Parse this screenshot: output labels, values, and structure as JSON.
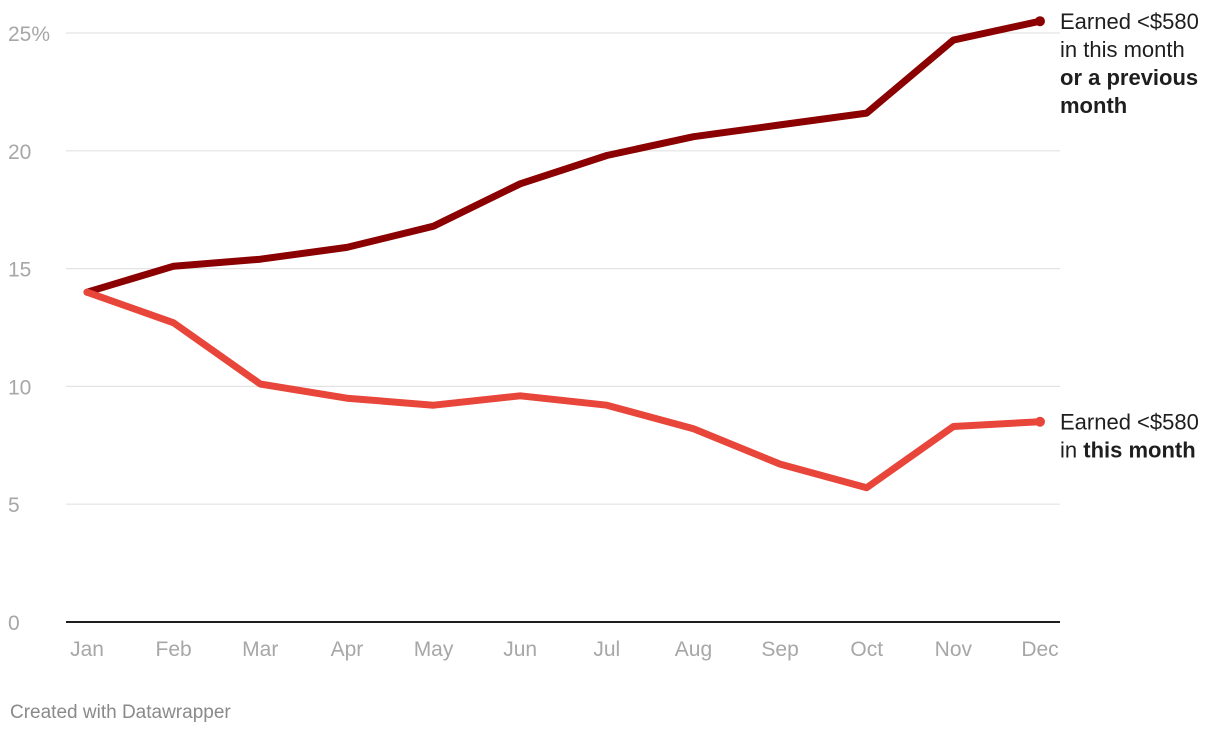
{
  "chart_data": {
    "type": "line",
    "x": [
      "Jan",
      "Feb",
      "Mar",
      "Apr",
      "May",
      "Jun",
      "Jul",
      "Aug",
      "Sep",
      "Oct",
      "Nov",
      "Dec"
    ],
    "ylim": [
      0,
      25
    ],
    "yticks": [
      0,
      5,
      10,
      15,
      20,
      25
    ],
    "ytick_labels": [
      "0",
      "5",
      "10",
      "15",
      "20",
      "25%"
    ],
    "grid": true,
    "series": [
      {
        "name": "Earned <$580 in this month or a previous month",
        "label_lines": [
          [
            {
              "text": "Earned <$580",
              "bold": false
            }
          ],
          [
            {
              "text": "in this month",
              "bold": false
            }
          ],
          [
            {
              "text": "or a previous",
              "bold": true
            }
          ],
          [
            {
              "text": "month",
              "bold": true
            }
          ]
        ],
        "color": "#8b0000",
        "values": [
          14.0,
          15.1,
          15.4,
          15.9,
          16.8,
          18.6,
          19.8,
          20.6,
          21.1,
          21.6,
          24.7,
          25.5
        ]
      },
      {
        "name": "Earned <$580 in this month",
        "label_lines": [
          [
            {
              "text": "Earned <$580",
              "bold": false
            }
          ],
          [
            {
              "text": "in ",
              "bold": false
            },
            {
              "text": "this month",
              "bold": true
            }
          ]
        ],
        "color": "#e8463a",
        "values": [
          14.0,
          12.7,
          10.1,
          9.5,
          9.2,
          9.6,
          9.2,
          8.2,
          6.7,
          5.7,
          8.3,
          8.5
        ]
      }
    ]
  },
  "footer": {
    "credit": "Created with Datawrapper"
  }
}
